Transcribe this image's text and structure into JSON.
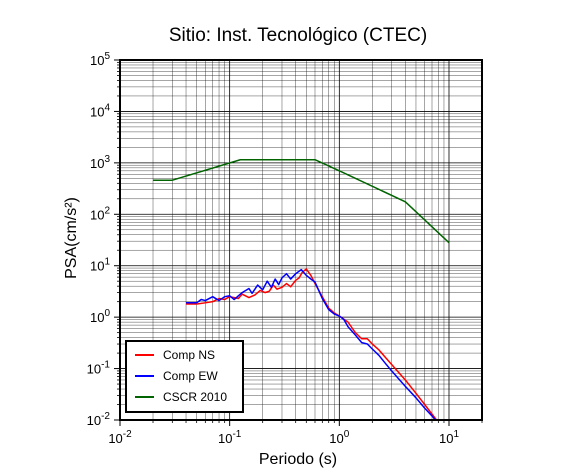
{
  "chart_data": {
    "type": "line",
    "title": "Sitio: Inst. Tecnológico (CTEC)",
    "xlabel": "Periodo (s)",
    "ylabel": "PSA(cm/s²)",
    "xscale": "log",
    "yscale": "log",
    "xlim": [
      0.01,
      20
    ],
    "ylim": [
      0.01,
      100000
    ],
    "xticks": [
      {
        "base": "10",
        "exp": "-2"
      },
      {
        "base": "10",
        "exp": "-1"
      },
      {
        "base": "10",
        "exp": "0"
      },
      {
        "base": "10",
        "exp": "1"
      }
    ],
    "yticks": [
      {
        "base": "10",
        "exp": "-2"
      },
      {
        "base": "10",
        "exp": "-1"
      },
      {
        "base": "10",
        "exp": "0"
      },
      {
        "base": "10",
        "exp": "1"
      },
      {
        "base": "10",
        "exp": "2"
      },
      {
        "base": "10",
        "exp": "3"
      },
      {
        "base": "10",
        "exp": "4"
      },
      {
        "base": "10",
        "exp": "5"
      }
    ],
    "grid": true,
    "legend_position": "bottom-left",
    "series": [
      {
        "name": "Comp NS",
        "color": "#ff0000",
        "x": [
          0.04,
          0.05,
          0.06,
          0.07,
          0.08,
          0.09,
          0.1,
          0.11,
          0.12,
          0.13,
          0.15,
          0.17,
          0.19,
          0.21,
          0.23,
          0.25,
          0.27,
          0.3,
          0.33,
          0.36,
          0.4,
          0.43,
          0.46,
          0.5,
          0.55,
          0.6,
          0.7,
          0.8,
          0.9,
          1.0,
          1.2,
          1.4,
          1.6,
          1.8,
          2.0,
          2.3,
          2.6,
          3.0,
          4.0,
          5.0,
          6.0,
          7.0,
          8.0
        ],
        "y": [
          1.8,
          1.8,
          1.9,
          2.0,
          2.3,
          2.2,
          2.5,
          2.4,
          2.3,
          2.8,
          2.4,
          2.7,
          3.3,
          3.0,
          3.2,
          4.2,
          3.5,
          3.8,
          4.5,
          3.9,
          5.2,
          5.8,
          7.5,
          8.6,
          6.5,
          4.5,
          2.5,
          1.5,
          1.2,
          1.05,
          0.8,
          0.5,
          0.38,
          0.38,
          0.3,
          0.23,
          0.17,
          0.12,
          0.06,
          0.033,
          0.02,
          0.013,
          0.009
        ]
      },
      {
        "name": "Comp EW",
        "color": "#0000ff",
        "x": [
          0.04,
          0.05,
          0.055,
          0.06,
          0.07,
          0.08,
          0.09,
          0.1,
          0.11,
          0.12,
          0.13,
          0.15,
          0.16,
          0.18,
          0.2,
          0.22,
          0.24,
          0.26,
          0.28,
          0.3,
          0.33,
          0.36,
          0.4,
          0.45,
          0.5,
          0.55,
          0.6,
          0.7,
          0.8,
          0.9,
          1.0,
          1.1,
          1.2,
          1.4,
          1.6,
          1.8,
          2.0,
          2.3,
          2.6,
          3.0,
          4.0,
          5.0,
          6.0,
          7.0,
          8.0
        ],
        "y": [
          1.9,
          1.9,
          2.2,
          2.1,
          2.5,
          2.1,
          2.5,
          2.6,
          2.2,
          2.6,
          3.0,
          3.6,
          2.9,
          4.2,
          3.4,
          5.0,
          3.8,
          5.5,
          4.3,
          5.8,
          7.0,
          5.5,
          7.0,
          8.4,
          6.5,
          5.5,
          4.8,
          2.3,
          1.4,
          1.15,
          1.05,
          0.9,
          0.65,
          0.45,
          0.32,
          0.3,
          0.24,
          0.18,
          0.13,
          0.09,
          0.045,
          0.027,
          0.017,
          0.012,
          0.0085
        ]
      },
      {
        "name": "CSCR 2010",
        "color": "#006400",
        "x": [
          0.02,
          0.03,
          0.125,
          0.6,
          1.0,
          4.0,
          10.0
        ],
        "y": [
          460,
          460,
          1150,
          1150,
          700,
          175,
          28
        ]
      }
    ]
  }
}
